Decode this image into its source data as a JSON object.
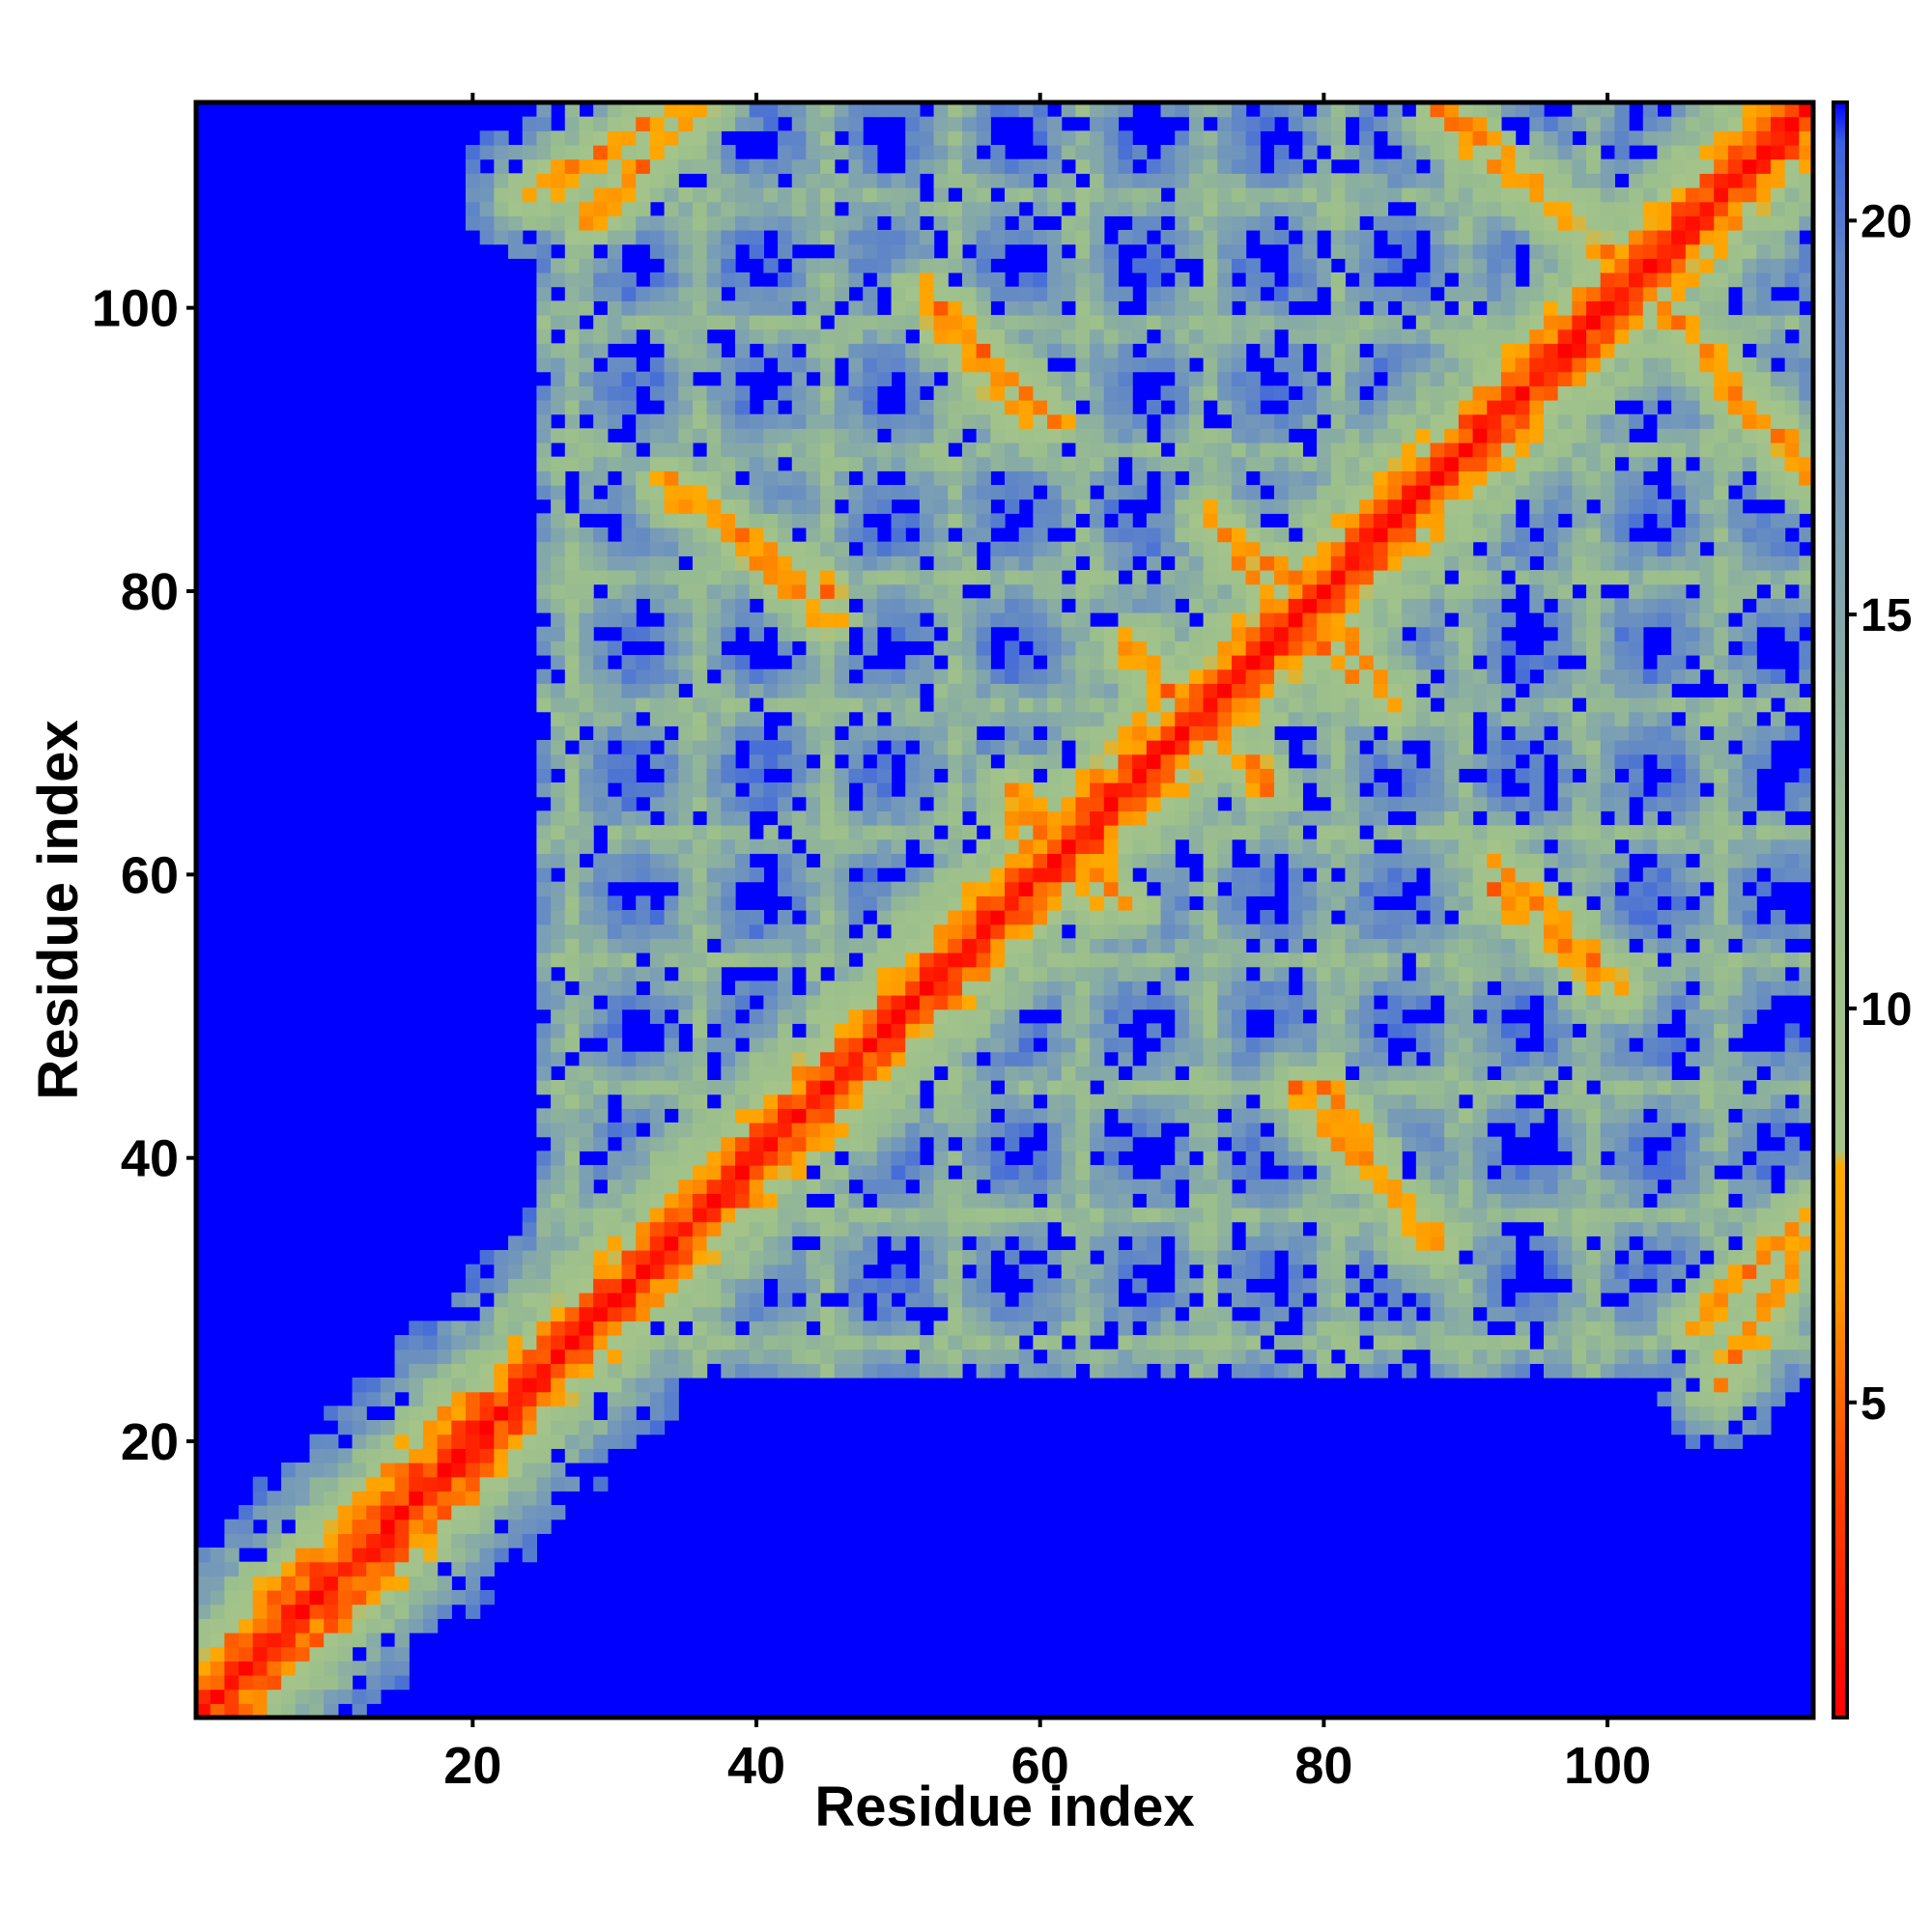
{
  "chart_data": {
    "type": "heatmap",
    "title": "",
    "xlabel": "Residue index",
    "ylabel": "Residue index",
    "x_range": [
      1,
      114
    ],
    "y_range": [
      1,
      114
    ],
    "x_ticks": [
      20,
      40,
      60,
      80,
      100
    ],
    "y_ticks": [
      20,
      40,
      60,
      80,
      100
    ],
    "colorbar": {
      "range": [
        1,
        21.5
      ],
      "ticks": [
        5,
        10,
        15,
        20
      ],
      "stops": [
        {
          "value": 1,
          "color": "#ff0000"
        },
        {
          "value": 4,
          "color": "#ff4400"
        },
        {
          "value": 6.5,
          "color": "#ff9900"
        },
        {
          "value": 8,
          "color": "#ffaa00"
        },
        {
          "value": 8.2,
          "color": "#a5c48a"
        },
        {
          "value": 12,
          "color": "#9bbf8c"
        },
        {
          "value": 16,
          "color": "#7b9fb4"
        },
        {
          "value": 19.5,
          "color": "#5f85c8"
        },
        {
          "value": 21,
          "color": "#3a60e0"
        },
        {
          "value": 21.5,
          "color": "#0000ff"
        }
      ]
    },
    "matrix_description": "Symmetric residue-residue distance map (Angstrom); distances clipped at ~21; red diagonal, orange helix-helix contact bands, blue beyond cutoff",
    "n_residues": 114,
    "contact_bands": [
      {
        "start": [
          24,
          108
        ],
        "end": [
          34,
          114
        ]
      },
      {
        "start": [
          34,
          88
        ],
        "end": [
          45,
          78
        ]
      },
      {
        "start": [
          53,
          99
        ],
        "end": [
          59,
          92
        ]
      },
      {
        "start": [
          73,
          84
        ],
        "end": [
          79,
          80
        ]
      },
      {
        "start": [
          88,
          114
        ],
        "end": [
          101,
          103
        ]
      },
      {
        "start": [
          101,
          103
        ],
        "end": [
          114,
          89
        ]
      },
      {
        "start": [
          80,
          76
        ],
        "end": [
          85,
          72
        ]
      },
      {
        "start": [
          92,
          61
        ],
        "end": [
          101,
          52
        ]
      },
      {
        "start": [
          80,
          45
        ],
        "end": [
          87,
          34
        ]
      },
      {
        "start": [
          106,
          28
        ],
        "end": [
          114,
          36
        ]
      },
      {
        "start": [
          58,
          64
        ],
        "end": [
          66,
          58
        ]
      },
      {
        "start": [
          67,
          76
        ],
        "end": [
          69,
          73
        ]
      },
      {
        "start": [
          74,
          68
        ],
        "end": [
          76,
          66
        ]
      }
    ]
  }
}
